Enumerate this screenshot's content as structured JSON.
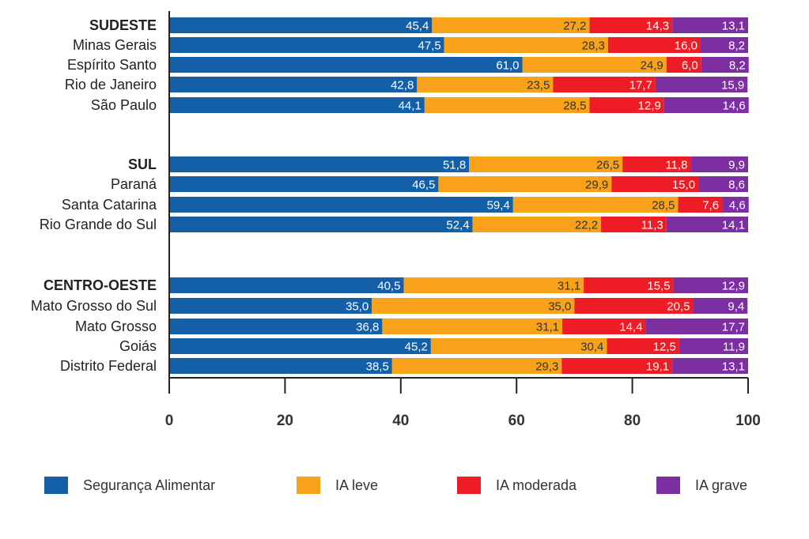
{
  "chart_data": {
    "type": "bar",
    "orientation": "horizontal",
    "stacked": true,
    "xlim": [
      0,
      100
    ],
    "x_ticks": [
      "0",
      "20",
      "40",
      "60",
      "80",
      "100"
    ],
    "grid": false,
    "legend_position": "bottom",
    "categories": [
      "SUDESTE",
      "Minas Gerais",
      "Espírito Santo",
      "Rio de Janeiro",
      "São Paulo",
      "SUL",
      "Paraná",
      "Santa Catarina",
      "Rio Grande do Sul",
      "CENTRO-OESTE",
      "Mato Grosso do Sul",
      "Mato Grosso",
      "Goiás",
      "Distrito Federal"
    ],
    "bold_categories": [
      "SUDESTE",
      "SUL",
      "CENTRO-OESTE"
    ],
    "groups": [
      [
        "SUDESTE",
        "Minas Gerais",
        "Espírito Santo",
        "Rio de Janeiro",
        "São Paulo"
      ],
      [
        "SUL",
        "Paraná",
        "Santa Catarina",
        "Rio Grande do Sul"
      ],
      [
        "CENTRO-OESTE",
        "Mato Grosso do Sul",
        "Mato Grosso",
        "Goiás",
        "Distrito Federal"
      ]
    ],
    "series": [
      {
        "name": "Segurança Alimentar",
        "color": "#1460a8",
        "label_color": "#ffffff",
        "values": [
          45.4,
          47.5,
          61.0,
          42.8,
          44.1,
          51.8,
          46.5,
          59.4,
          52.4,
          40.5,
          35.0,
          36.8,
          45.2,
          38.5
        ],
        "labels": [
          "45,4",
          "47,5",
          "61,0",
          "42,8",
          "44,1",
          "51,8",
          "46,5",
          "59,4",
          "52,4",
          "40,5",
          "35,0",
          "36,8",
          "45,2",
          "38,5"
        ]
      },
      {
        "name": "IA leve",
        "color": "#f8a21c",
        "label_color": "#333333",
        "values": [
          27.2,
          28.3,
          24.9,
          23.5,
          28.5,
          26.5,
          29.9,
          28.5,
          22.2,
          31.1,
          35.0,
          31.1,
          30.4,
          29.3
        ],
        "labels": [
          "27,2",
          "28,3",
          "24,9",
          "23,5",
          "28,5",
          "26,5",
          "29,9",
          "28,5",
          "22,2",
          "31,1",
          "35,0",
          "31,1",
          "30,4",
          "29,3"
        ]
      },
      {
        "name": "IA moderada",
        "color": "#ee1c25",
        "label_color": "#ffffff",
        "values": [
          14.3,
          16.0,
          6.0,
          17.7,
          12.9,
          11.8,
          15.0,
          7.6,
          11.3,
          15.5,
          20.5,
          14.4,
          12.5,
          19.1
        ],
        "labels": [
          "14,3",
          "16,0",
          "6,0",
          "17,7",
          "12,9",
          "11,8",
          "15,0",
          "7,6",
          "11,3",
          "15,5",
          "20,5",
          "14,4",
          "12,5",
          "19,1"
        ]
      },
      {
        "name": "IA grave",
        "color": "#7b2fa0",
        "label_color": "#ffffff",
        "values": [
          13.1,
          8.2,
          8.2,
          15.9,
          14.6,
          9.9,
          8.6,
          4.6,
          14.1,
          12.9,
          9.4,
          17.7,
          11.9,
          13.1
        ],
        "labels": [
          "13,1",
          "8,2",
          "8,2",
          "15,9",
          "14,6",
          "9,9",
          "8,6",
          "4,6",
          "14,1",
          "12,9",
          "9,4",
          "17,7",
          "11,9",
          "13,1"
        ]
      }
    ]
  }
}
